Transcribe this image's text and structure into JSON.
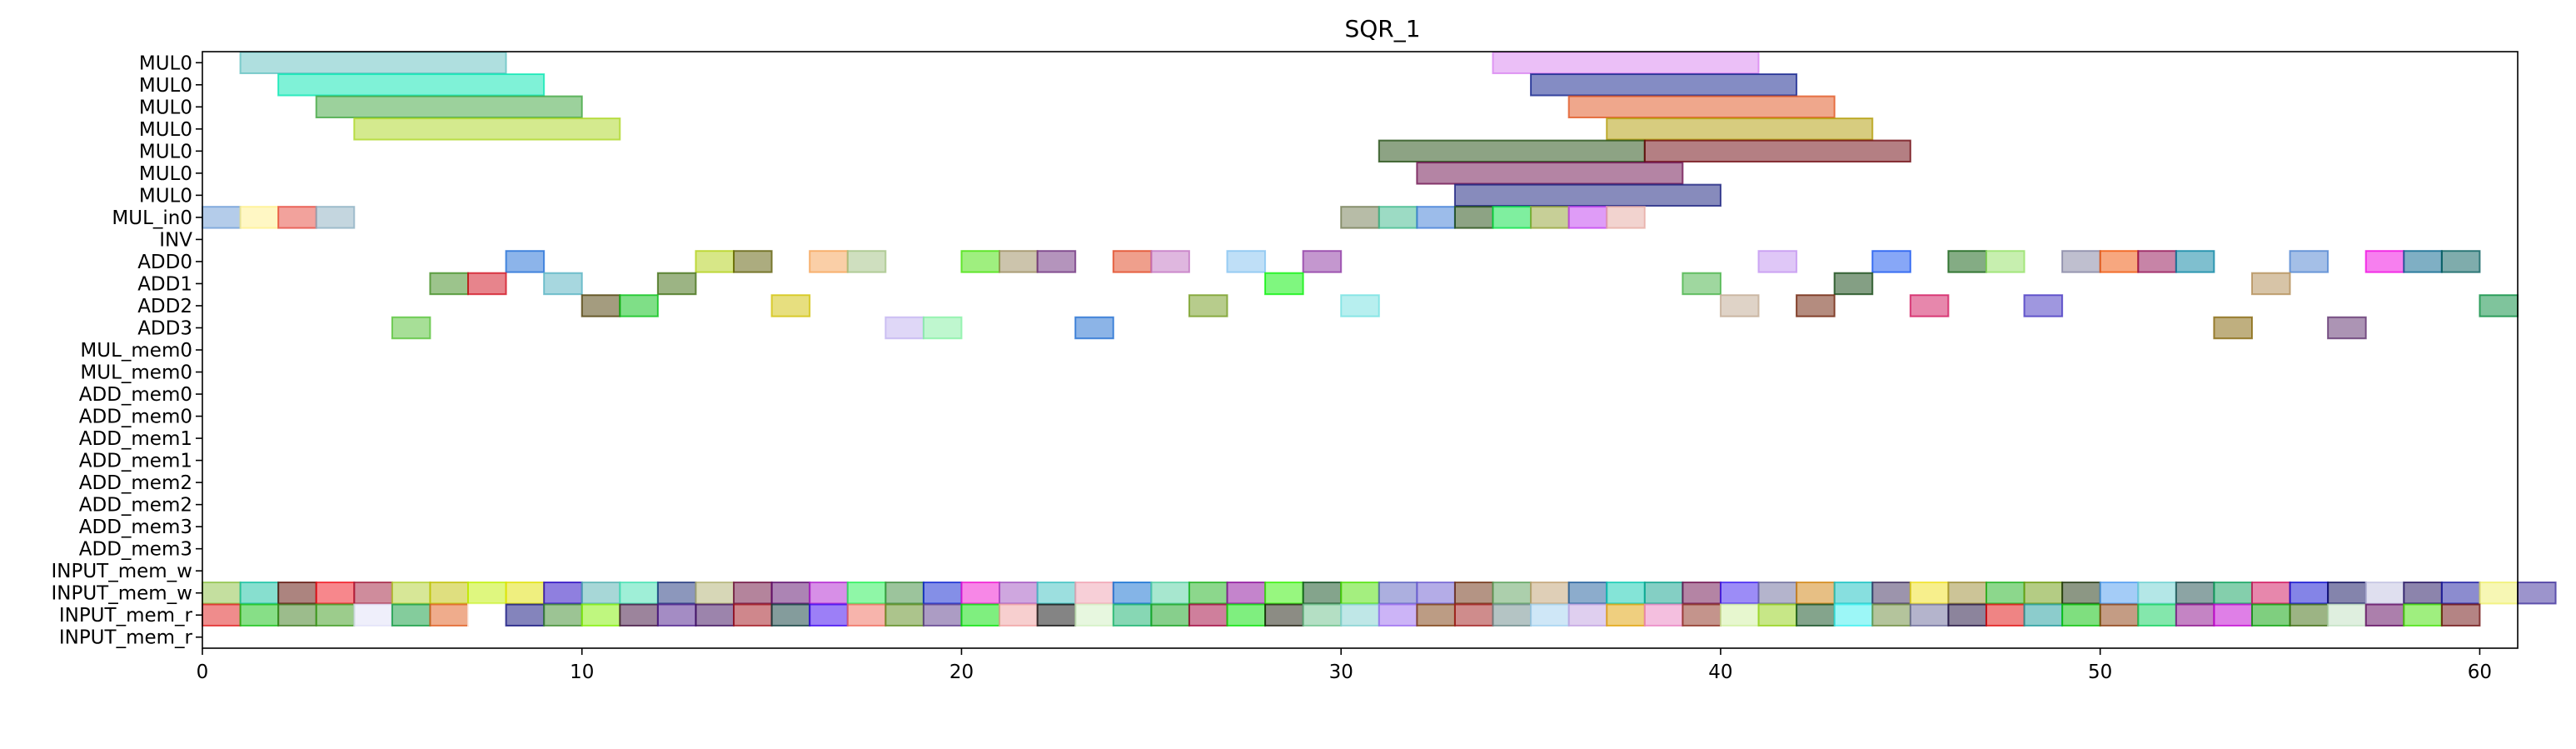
{
  "chart_data": {
    "type": "gantt",
    "title": "SQR_1",
    "xlim": [
      0,
      61
    ],
    "x_ticks": [
      0,
      10,
      20,
      30,
      40,
      50,
      60
    ],
    "rows": [
      "MUL0",
      "MUL0",
      "MUL0",
      "MUL0",
      "MUL0",
      "MUL0",
      "MUL0",
      "MUL_in0",
      "INV",
      "ADD0",
      "ADD1",
      "ADD2",
      "ADD3",
      "MUL_mem0",
      "MUL_mem0",
      "ADD_mem0",
      "ADD_mem0",
      "ADD_mem1",
      "ADD_mem1",
      "ADD_mem2",
      "ADD_mem2",
      "ADD_mem3",
      "ADD_mem3",
      "INPUT_mem_w",
      "INPUT_mem_w",
      "INPUT_mem_r",
      "INPUT_mem_r"
    ],
    "bars": [
      {
        "row": 0,
        "start": 1,
        "end": 8,
        "color": "#5fbfbf"
      },
      {
        "row": 0,
        "start": 34,
        "end": 41,
        "color": "#d77ff0"
      },
      {
        "row": 1,
        "start": 2,
        "end": 9,
        "color": "#00e5b0"
      },
      {
        "row": 1,
        "start": 35,
        "end": 42,
        "color": "#0a1a8a"
      },
      {
        "row": 2,
        "start": 3,
        "end": 10,
        "color": "#3aa33a"
      },
      {
        "row": 2,
        "start": 36,
        "end": 43,
        "color": "#e0501a"
      },
      {
        "row": 3,
        "start": 4,
        "end": 11,
        "color": "#aad61e"
      },
      {
        "row": 3,
        "start": 37,
        "end": 44,
        "color": "#b09a00"
      },
      {
        "row": 4,
        "start": 31,
        "end": 38,
        "color": "#1b470a"
      },
      {
        "row": 4,
        "start": 38,
        "end": 45,
        "color": "#6a0008"
      },
      {
        "row": 5,
        "start": 32,
        "end": 39,
        "color": "#6a0a4a"
      },
      {
        "row": 6,
        "start": 33,
        "end": 40,
        "color": "#10177a"
      },
      {
        "row": 7,
        "start": 0,
        "end": 1,
        "color": "#6a9ad6"
      },
      {
        "row": 7,
        "start": 1,
        "end": 2,
        "color": "#fff08a"
      },
      {
        "row": 7,
        "start": 2,
        "end": 3,
        "color": "#e6453a"
      },
      {
        "row": 7,
        "start": 3,
        "end": 4,
        "color": "#8aaec0"
      },
      {
        "row": 7,
        "start": 30,
        "end": 31,
        "color": "#707a50"
      },
      {
        "row": 7,
        "start": 31,
        "end": 32,
        "color": "#3ab88a"
      },
      {
        "row": 7,
        "start": 32,
        "end": 33,
        "color": "#3a7ad6"
      },
      {
        "row": 7,
        "start": 33,
        "end": 34,
        "color": "#1b470a"
      },
      {
        "row": 7,
        "start": 34,
        "end": 35,
        "color": "#00e040"
      },
      {
        "row": 7,
        "start": 35,
        "end": 36,
        "color": "#90a030"
      },
      {
        "row": 7,
        "start": 36,
        "end": 37,
        "color": "#c03af0"
      },
      {
        "row": 7,
        "start": 37,
        "end": 38,
        "color": "#e6a8a0"
      },
      {
        "row": 9,
        "start": 8,
        "end": 9,
        "color": "#1a6ad6"
      },
      {
        "row": 9,
        "start": 13,
        "end": 14,
        "color": "#b0d010"
      },
      {
        "row": 9,
        "start": 14,
        "end": 15,
        "color": "#5a5a00"
      },
      {
        "row": 9,
        "start": 16,
        "end": 17,
        "color": "#f5a050"
      },
      {
        "row": 9,
        "start": 17,
        "end": 18,
        "color": "#a0c080"
      },
      {
        "row": 9,
        "start": 20,
        "end": 21,
        "color": "#40e000"
      },
      {
        "row": 9,
        "start": 21,
        "end": 22,
        "color": "#9a8a5a"
      },
      {
        "row": 9,
        "start": 22,
        "end": 23,
        "color": "#6a2a7a"
      },
      {
        "row": 9,
        "start": 24,
        "end": 25,
        "color": "#e0401a"
      },
      {
        "row": 9,
        "start": 25,
        "end": 26,
        "color": "#c070c0"
      },
      {
        "row": 9,
        "start": 27,
        "end": 28,
        "color": "#80c0f0"
      },
      {
        "row": 9,
        "start": 29,
        "end": 30,
        "color": "#8a30a0"
      },
      {
        "row": 9,
        "start": 41,
        "end": 42,
        "color": "#c090f0"
      },
      {
        "row": 9,
        "start": 44,
        "end": 45,
        "color": "#1050f0"
      },
      {
        "row": 9,
        "start": 46,
        "end": 47,
        "color": "#0a5a0a"
      },
      {
        "row": 9,
        "start": 47,
        "end": 48,
        "color": "#90e060"
      },
      {
        "row": 9,
        "start": 49,
        "end": 50,
        "color": "#8080a0"
      },
      {
        "row": 9,
        "start": 50,
        "end": 51,
        "color": "#f05000"
      },
      {
        "row": 9,
        "start": 51,
        "end": 52,
        "color": "#900a50"
      },
      {
        "row": 9,
        "start": 52,
        "end": 53,
        "color": "#0080a0"
      },
      {
        "row": 9,
        "start": 55,
        "end": 56,
        "color": "#4a80d0"
      },
      {
        "row": 9,
        "start": 57,
        "end": 58,
        "color": "#f000e0"
      },
      {
        "row": 9,
        "start": 58,
        "end": 59,
        "color": "#00608a"
      },
      {
        "row": 9,
        "start": 59,
        "end": 60,
        "color": "#005a5a"
      },
      {
        "row": 10,
        "start": 6,
        "end": 7,
        "color": "#3a8a1a"
      },
      {
        "row": 10,
        "start": 7,
        "end": 8,
        "color": "#d00a1a"
      },
      {
        "row": 10,
        "start": 9,
        "end": 10,
        "color": "#50b0c0"
      },
      {
        "row": 10,
        "start": 12,
        "end": 13,
        "color": "#3a6a0a"
      },
      {
        "row": 10,
        "start": 28,
        "end": 29,
        "color": "#00f000"
      },
      {
        "row": 10,
        "start": 39,
        "end": 40,
        "color": "#40b040"
      },
      {
        "row": 10,
        "start": 43,
        "end": 44,
        "color": "#0a400a"
      },
      {
        "row": 10,
        "start": 54,
        "end": 55,
        "color": "#b08a50"
      },
      {
        "row": 11,
        "start": 10,
        "end": 11,
        "color": "#4a3a00"
      },
      {
        "row": 11,
        "start": 11,
        "end": 12,
        "color": "#00c010"
      },
      {
        "row": 11,
        "start": 15,
        "end": 16,
        "color": "#d0c000"
      },
      {
        "row": 11,
        "start": 26,
        "end": 27,
        "color": "#709a1a"
      },
      {
        "row": 11,
        "start": 30,
        "end": 31,
        "color": "#70e0e0"
      },
      {
        "row": 11,
        "start": 40,
        "end": 41,
        "color": "#c0a890"
      },
      {
        "row": 11,
        "start": 42,
        "end": 43,
        "color": "#6a1a00"
      },
      {
        "row": 11,
        "start": 45,
        "end": 46,
        "color": "#d0105a"
      },
      {
        "row": 11,
        "start": 48,
        "end": 49,
        "color": "#4030c0"
      },
      {
        "row": 11,
        "start": 60,
        "end": 61,
        "color": "#008a3a"
      },
      {
        "row": 12,
        "start": 5,
        "end": 6,
        "color": "#50c030"
      },
      {
        "row": 12,
        "start": 18,
        "end": 19,
        "color": "#c0b0f0"
      },
      {
        "row": 12,
        "start": 19,
        "end": 20,
        "color": "#80f0a0"
      },
      {
        "row": 12,
        "start": 23,
        "end": 24,
        "color": "#1a6ad0"
      },
      {
        "row": 12,
        "start": 53,
        "end": 54,
        "color": "#806000"
      },
      {
        "row": 12,
        "start": 56,
        "end": 57,
        "color": "#5a2a6a"
      }
    ],
    "row24_colors": [
      "#8ac040",
      "#10c0a0",
      "#5a0a00",
      "#f0101a",
      "#a01a3a",
      "#b0d030",
      "#c0c000",
      "#c0f000",
      "#e0e000",
      "#2000c0",
      "#50b0b0",
      "#40e0b0",
      "#1a307a",
      "#b0b070",
      "#6a0a3a",
      "#5a0a6a",
      "#b020d0",
      "#20f050",
      "#3a8a3a",
      "#0a20d0",
      "#f010d0",
      "#a050c0",
      "#3ac0c0",
      "#f0a0b0",
      "#0a6ad0",
      "#50d0a0",
      "#1ab01a",
      "#8a0a9a",
      "#30f000",
      "#0a4a1a",
      "#4ae000",
      "#5a60c0",
      "#6a5ad0",
      "#6a2a0a",
      "#5aa05a",
      "#c0a070",
      "#1a5a9a",
      "#0acab0",
      "#0aa08a",
      "#6a0a4a",
      "#3a1af0",
      "#6a6a9a",
      "#d0800a",
      "#10c0c0",
      "#3a2a5a",
      "#f0e01a",
      "#9a8a30",
      "#1ab01a",
      "#6a9a0a",
      "#1a300a",
      "#4a9af0",
      "#6ad0d0",
      "#1a4a4a",
      "#0aa05a",
      "#d0105a",
      "#0a0ad0",
      "#0a0a5a",
      "#c0c0e0",
      "#1a0a5a",
      "#1a1aa0",
      "#f0f06a",
      "#3a2a9a"
    ],
    "row25_colors": [
      "#e01a1a",
      "#10c010",
      "#3a7a1a",
      "#3a9a1a",
      "#e0e0f8",
      "#0a9a3a",
      "#e05a1a",
      "#ffffff",
      "#0a0a7a",
      "#3a8a2a",
      "#80f000",
      "#3a0a3a",
      "#4a1a8a",
      "#3a0a5a",
      "#a0101a",
      "#0a3a3a",
      "#3a00f0",
      "#f06a5a",
      "#5a8a1a",
      "#5a3a8a",
      "#00e000",
      "#f0a0a0",
      "#0a0a0a",
      "#d0f0c0",
      "#10b06a",
      "#10a01a",
      "#a0003a",
      "#00e000",
      "#1a1a0a",
      "#6ac08a",
      "#80d0d0",
      "#9a6af0",
      "#7a3a0a",
      "#a01a1a",
      "#6a8a8a",
      "#a0d0f0",
      "#c0a0e0",
      "#e0a000",
      "#ea80c0",
      "#8a2a1a",
      "#d0f0a0",
      "#90d010",
      "#0a4a1a",
      "#3af0f0",
      "#6a8a3a",
      "#6a6a9a",
      "#1a0a3a",
      "#e00a0a",
      "#1a9a9a",
      "#00c000",
      "#8a3a0a",
      "#0ad05a",
      "#8a0a8a",
      "#c000d0",
      "#00a000",
      "#3a6a0a",
      "#c0e0c0",
      "#5a005a",
      "#40e000",
      "#6a0a0a"
    ]
  }
}
